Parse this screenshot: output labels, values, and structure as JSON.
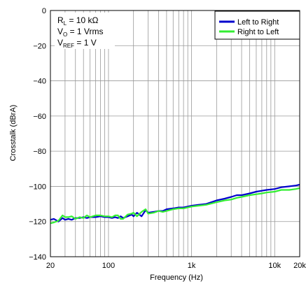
{
  "chart_data": {
    "type": "line",
    "title": "",
    "xlabel": "Frequency (Hz)",
    "ylabel": "Crosstalk (dBrA)",
    "xscale": "log",
    "xlim": [
      20,
      20000
    ],
    "ylim": [
      -140,
      0
    ],
    "xticks": [
      {
        "value": 20,
        "label": "20"
      },
      {
        "value": 100,
        "label": "100"
      },
      {
        "value": 1000,
        "label": "1k"
      },
      {
        "value": 10000,
        "label": "10k"
      },
      {
        "value": 20000,
        "label": "20k"
      }
    ],
    "yticks": [
      {
        "value": 0,
        "label": "0"
      },
      {
        "value": -20,
        "label": "−20"
      },
      {
        "value": -40,
        "label": "−40"
      },
      {
        "value": -60,
        "label": "−60"
      },
      {
        "value": -80,
        "label": "−80"
      },
      {
        "value": -100,
        "label": "−100"
      },
      {
        "value": -120,
        "label": "−120"
      },
      {
        "value": -140,
        "label": "−140"
      }
    ],
    "grid": true,
    "legend_position": "top-right",
    "annotations": [
      {
        "main": "R",
        "sub": "L",
        "rest": " = 10 kΩ"
      },
      {
        "main": "V",
        "sub": "O",
        "rest": " = 1 Vrms"
      },
      {
        "main": "V",
        "sub": "REF",
        "rest": " = 1 V"
      }
    ],
    "series": [
      {
        "name": "Left to Right",
        "color": "#0000cc",
        "x": [
          20,
          22,
          25,
          28,
          30,
          33,
          36,
          40,
          45,
          50,
          55,
          60,
          70,
          80,
          90,
          100,
          110,
          120,
          130,
          140,
          150,
          170,
          190,
          200,
          220,
          250,
          280,
          300,
          350,
          400,
          450,
          500,
          600,
          700,
          800,
          1000,
          1200,
          1500,
          2000,
          2500,
          3000,
          3500,
          4000,
          5000,
          6000,
          7000,
          8000,
          10000,
          12000,
          15000,
          18000,
          20000
        ],
        "y": [
          -119,
          -118.5,
          -120,
          -118,
          -119,
          -118.5,
          -119,
          -118,
          -118,
          -117.5,
          -118,
          -117.5,
          -117.5,
          -117,
          -117.5,
          -117.5,
          -118,
          -117.5,
          -118,
          -117,
          -118,
          -117,
          -116,
          -117,
          -115,
          -117,
          -113.5,
          -115,
          -114.5,
          -114,
          -114,
          -113,
          -112.5,
          -112,
          -112,
          -111,
          -110.5,
          -110,
          -108,
          -107,
          -106,
          -105,
          -105,
          -104,
          -103,
          -102.5,
          -102,
          -101.5,
          -100.5,
          -100,
          -99.5,
          -99
        ]
      },
      {
        "name": "Right to Left",
        "color": "#33ee33",
        "x": [
          20,
          22,
          25,
          28,
          30,
          33,
          36,
          40,
          45,
          50,
          55,
          60,
          70,
          80,
          90,
          100,
          110,
          120,
          130,
          140,
          150,
          170,
          190,
          200,
          220,
          250,
          280,
          300,
          350,
          400,
          450,
          500,
          600,
          700,
          800,
          1000,
          1200,
          1500,
          2000,
          2500,
          3000,
          3500,
          4000,
          5000,
          6000,
          7000,
          8000,
          10000,
          12000,
          15000,
          18000,
          20000
        ],
        "y": [
          -121,
          -120.5,
          -119.5,
          -116.5,
          -117.5,
          -117.5,
          -117,
          -118.5,
          -117.5,
          -118,
          -116.5,
          -117.5,
          -116.5,
          -116.5,
          -117,
          -117,
          -117.5,
          -116.5,
          -116.5,
          -118.5,
          -118.5,
          -116,
          -115.5,
          -115,
          -117,
          -114.5,
          -113,
          -115.5,
          -115,
          -114,
          -114.5,
          -114,
          -113,
          -112.5,
          -112.5,
          -111.5,
          -111,
          -110.5,
          -109,
          -108,
          -107.5,
          -106.5,
          -106,
          -105,
          -104.5,
          -104,
          -103.5,
          -103,
          -102,
          -102,
          -101.5,
          -101
        ]
      }
    ]
  }
}
